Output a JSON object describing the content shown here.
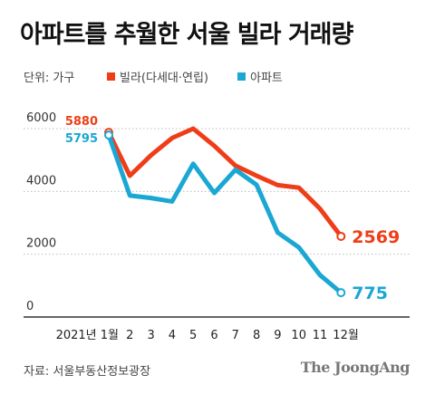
{
  "title": "아파트를 추월한 서울 빌라 거래량",
  "unit_label": "단위: 가구",
  "source": "자료: 서울부동산정보광장",
  "brand": "The JoongAng",
  "colors": {
    "villa": "#ef3d18",
    "apartment": "#1aa7d4",
    "grid": "#bdbdbd",
    "axis": "#333333"
  },
  "chart_data": {
    "type": "line",
    "categories": [
      "2021년 1월",
      "2",
      "3",
      "4",
      "5",
      "6",
      "7",
      "8",
      "9",
      "10",
      "11",
      "12월"
    ],
    "ylim": [
      0,
      6000
    ],
    "yticks": [
      0,
      2000,
      4000,
      6000
    ],
    "series": [
      {
        "name": "빌라(다세대·연립)",
        "key": "villa",
        "values": [
          5880,
          4500,
          5150,
          5700,
          6000,
          5450,
          4820,
          4500,
          4200,
          4120,
          3450,
          2569
        ],
        "start_label": "5880",
        "end_label": "2569"
      },
      {
        "name": "아파트",
        "key": "apartment",
        "values": [
          5795,
          3870,
          3790,
          3680,
          4880,
          3950,
          4690,
          4210,
          2690,
          2220,
          1340,
          775
        ],
        "start_label": "5795",
        "end_label": "775"
      }
    ]
  }
}
